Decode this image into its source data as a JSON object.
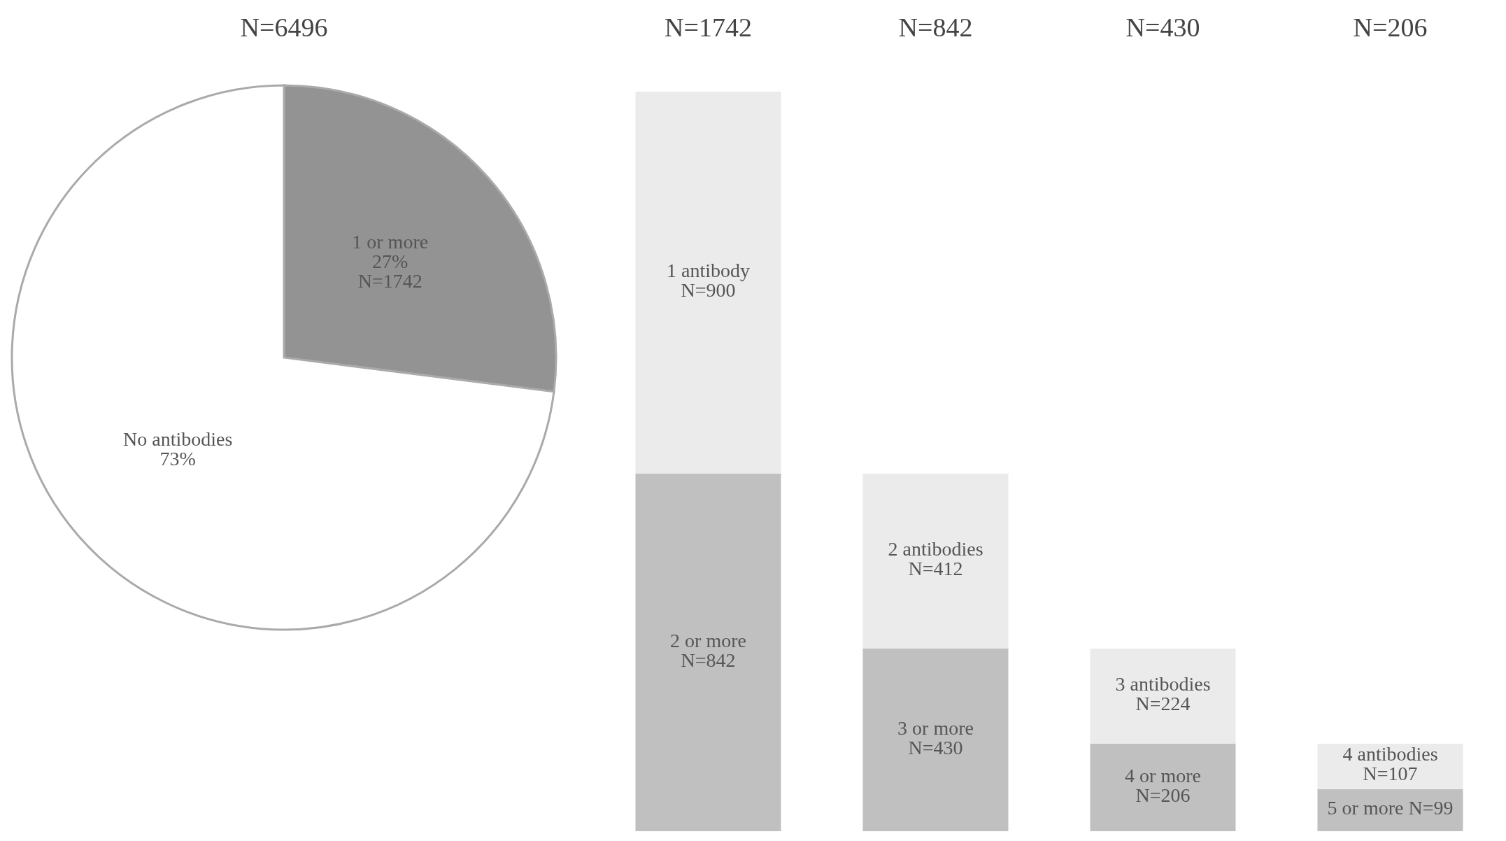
{
  "chart_data": [
    {
      "type": "pie",
      "title": "N=6496",
      "categories": [
        "1 or more",
        "No antibodies"
      ],
      "values": [
        27,
        73
      ],
      "colors": [
        "#939393",
        "#ffffff"
      ],
      "value_labels": [
        "27%\nN=1742",
        "73%"
      ]
    },
    {
      "type": "bar",
      "stacked": true,
      "categories": [
        null,
        null,
        null,
        null
      ],
      "annotations": [
        "N=1742",
        "N=842",
        "N=430",
        "N=206"
      ],
      "series": [
        {
          "color": "#c0c0c0",
          "values": [
            842,
            430,
            206,
            99
          ],
          "value_labels": [
            "2 or more\nN=842",
            "3 or more\nN=430",
            "4 or more\nN=206",
            "5 or more N=99"
          ]
        },
        {
          "color": "#ebebeb",
          "values": [
            900,
            412,
            224,
            107
          ],
          "value_labels": [
            "1 antibody\nN=900",
            "2 antibodies\nN=412",
            "3 antibodies\nN=224",
            "4 antibodies\nN=107"
          ]
        }
      ]
    }
  ]
}
